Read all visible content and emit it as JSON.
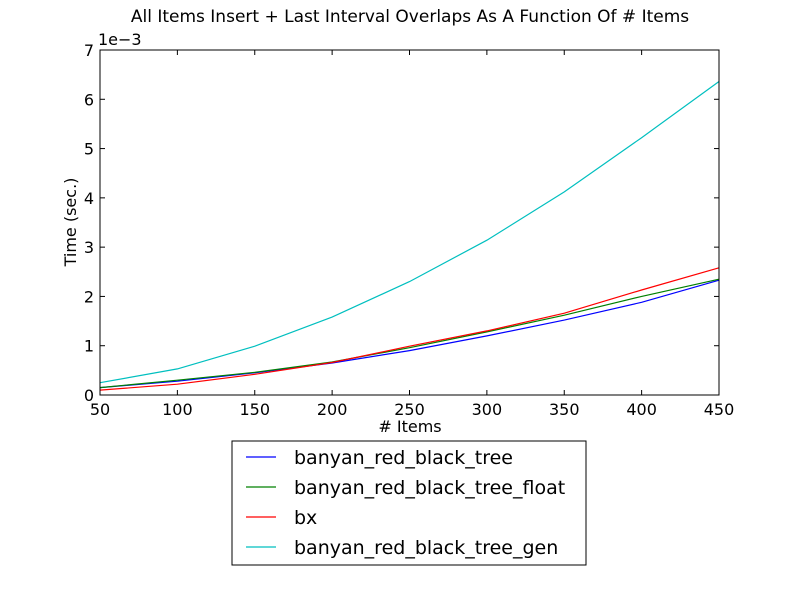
{
  "chart_data": {
    "type": "line",
    "title": "All Items Insert + Last Interval Overlaps As A Function Of # Items",
    "xlabel": "# Items",
    "ylabel": "Time (sec.)",
    "y_offset_label": "1e−3",
    "xlim": [
      50,
      450
    ],
    "ylim": [
      0,
      0.007
    ],
    "x_ticks": [
      50,
      100,
      150,
      200,
      250,
      300,
      350,
      400,
      450
    ],
    "x_tick_labels": [
      "50",
      "100",
      "150",
      "200",
      "250",
      "300",
      "350",
      "400",
      "450"
    ],
    "y_ticks": [
      0,
      0.001,
      0.002,
      0.003,
      0.004,
      0.005,
      0.006,
      0.007
    ],
    "y_tick_labels": [
      "0",
      "1",
      "2",
      "3",
      "4",
      "5",
      "6",
      "7"
    ],
    "grid": false,
    "legend_position": "below",
    "x": [
      50,
      100,
      150,
      200,
      250,
      300,
      350,
      400,
      450
    ],
    "series": [
      {
        "name": "banyan_red_black_tree",
        "color": "#0000ff",
        "values": [
          0.00015,
          0.00028,
          0.00045,
          0.00065,
          0.0009,
          0.0012,
          0.00152,
          0.00188,
          0.00233
        ]
      },
      {
        "name": "banyan_red_black_tree_float",
        "color": "#008000",
        "values": [
          0.00015,
          0.0003,
          0.00046,
          0.00067,
          0.00096,
          0.00128,
          0.00162,
          0.002,
          0.00235
        ]
      },
      {
        "name": "bx",
        "color": "#ff0000",
        "values": [
          0.0001,
          0.00022,
          0.00042,
          0.00066,
          0.00099,
          0.0013,
          0.00166,
          0.00213,
          0.00258
        ]
      },
      {
        "name": "banyan_red_black_tree_gen",
        "color": "#00bfbf",
        "values": [
          0.00025,
          0.00053,
          0.00099,
          0.00158,
          0.0023,
          0.00314,
          0.00412,
          0.00522,
          0.00636
        ]
      }
    ]
  }
}
